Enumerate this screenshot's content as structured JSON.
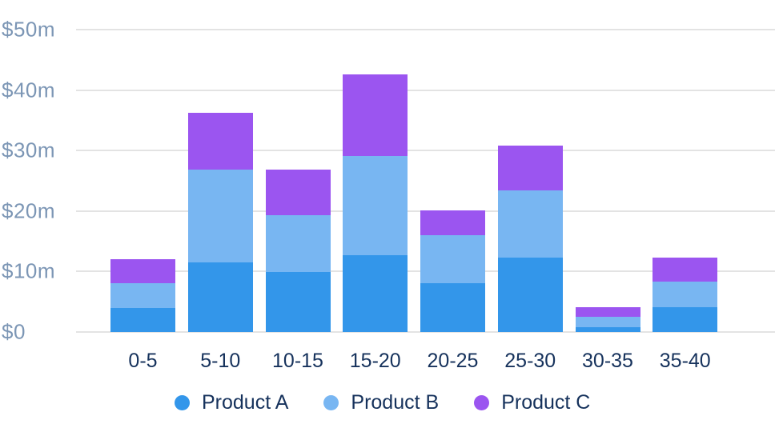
{
  "chart_data": {
    "type": "bar",
    "stacked": true,
    "orientation": "vertical",
    "grid": "horizontal",
    "legend_position": "bottom",
    "xlabel": "",
    "ylabel": "",
    "ylim": [
      0,
      50
    ],
    "categories": [
      "0-5",
      "5-10",
      "10-15",
      "15-20",
      "20-25",
      "25-30",
      "30-35",
      "35-40"
    ],
    "series": [
      {
        "name": "Product A",
        "color": "#3396ea",
        "values": [
          4.0,
          11.5,
          9.9,
          12.7,
          8.1,
          12.3,
          0.8,
          4.1
        ]
      },
      {
        "name": "Product B",
        "color": "#78b6f2",
        "values": [
          4.1,
          15.4,
          9.4,
          16.4,
          7.9,
          11.1,
          1.7,
          4.2
        ]
      },
      {
        "name": "Product C",
        "color": "#9b55f0",
        "values": [
          4.0,
          9.4,
          7.6,
          13.5,
          4.1,
          7.4,
          1.6,
          4.0
        ]
      }
    ],
    "stack_totals": [
      12.1,
      36.3,
      26.9,
      42.6,
      20.1,
      30.8,
      4.1,
      12.3
    ],
    "y_ticks": [
      {
        "value": 0,
        "label": "$0"
      },
      {
        "value": 10,
        "label": "$10m"
      },
      {
        "value": 20,
        "label": "$20m"
      },
      {
        "value": 30,
        "label": "$30m"
      },
      {
        "value": 40,
        "label": "$40m"
      },
      {
        "value": 50,
        "label": "$50m"
      }
    ]
  },
  "colors": {
    "background": "#ffffff",
    "gridline": "#e3e3e3",
    "y_tick_text": "#7c96b5",
    "x_tick_text": "#16325c",
    "legend_text": "#16325c"
  },
  "legend": {
    "items": [
      {
        "label": "Product A",
        "color": "#3396ea"
      },
      {
        "label": "Product B",
        "color": "#78b6f2"
      },
      {
        "label": "Product C",
        "color": "#9b55f0"
      }
    ]
  }
}
